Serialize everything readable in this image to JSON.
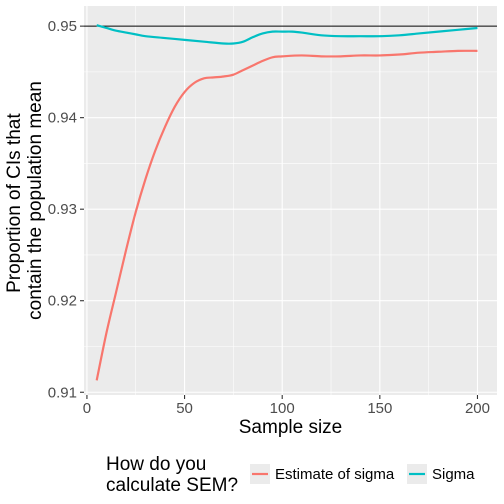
{
  "chart_data": {
    "type": "line",
    "xlabel": "Sample size",
    "ylabel_lines": [
      "Proportion of CIs that",
      "contain the population mean"
    ],
    "xlim": [
      -1.5,
      210
    ],
    "ylim": [
      0.9097,
      0.9522
    ],
    "x_ticks": [
      0,
      50,
      100,
      150,
      200
    ],
    "y_ticks": [
      0.91,
      0.92,
      0.93,
      0.94,
      0.95
    ],
    "y_tick_labels": [
      "0.91",
      "0.92",
      "0.93",
      "0.94",
      "0.95"
    ],
    "grid": true,
    "reference_line": {
      "y": 0.95,
      "color": "#000000"
    },
    "legend": {
      "position": "bottom",
      "title_lines": [
        "How do you",
        "calculate SEM?"
      ]
    },
    "series": [
      {
        "name": "Estimate of sigma",
        "color": "#F8766D",
        "x": [
          5,
          10,
          15,
          20,
          25,
          30,
          35,
          40,
          45,
          50,
          55,
          60,
          65,
          70,
          75,
          80,
          85,
          90,
          95,
          100,
          110,
          120,
          130,
          140,
          150,
          160,
          170,
          180,
          190,
          200
        ],
        "y": [
          0.9113,
          0.9165,
          0.921,
          0.9255,
          0.9297,
          0.9333,
          0.9364,
          0.939,
          0.9412,
          0.9428,
          0.9438,
          0.9443,
          0.9444,
          0.9445,
          0.9447,
          0.9452,
          0.9457,
          0.9462,
          0.9466,
          0.9467,
          0.9468,
          0.9467,
          0.9467,
          0.9468,
          0.9468,
          0.9469,
          0.9471,
          0.9472,
          0.9473,
          0.9473
        ]
      },
      {
        "name": "Sigma",
        "color": "#00BFC4",
        "x": [
          5,
          10,
          15,
          20,
          25,
          30,
          40,
          50,
          60,
          70,
          75,
          80,
          85,
          90,
          95,
          100,
          105,
          110,
          120,
          130,
          140,
          150,
          160,
          170,
          180,
          190,
          200
        ],
        "y": [
          0.9501,
          0.9498,
          0.9495,
          0.9493,
          0.9491,
          0.9489,
          0.9487,
          0.9485,
          0.9483,
          0.9481,
          0.9481,
          0.9483,
          0.9488,
          0.9492,
          0.9494,
          0.9494,
          0.9494,
          0.9493,
          0.949,
          0.9489,
          0.9489,
          0.9489,
          0.949,
          0.9492,
          0.9494,
          0.9496,
          0.9498
        ]
      }
    ]
  }
}
